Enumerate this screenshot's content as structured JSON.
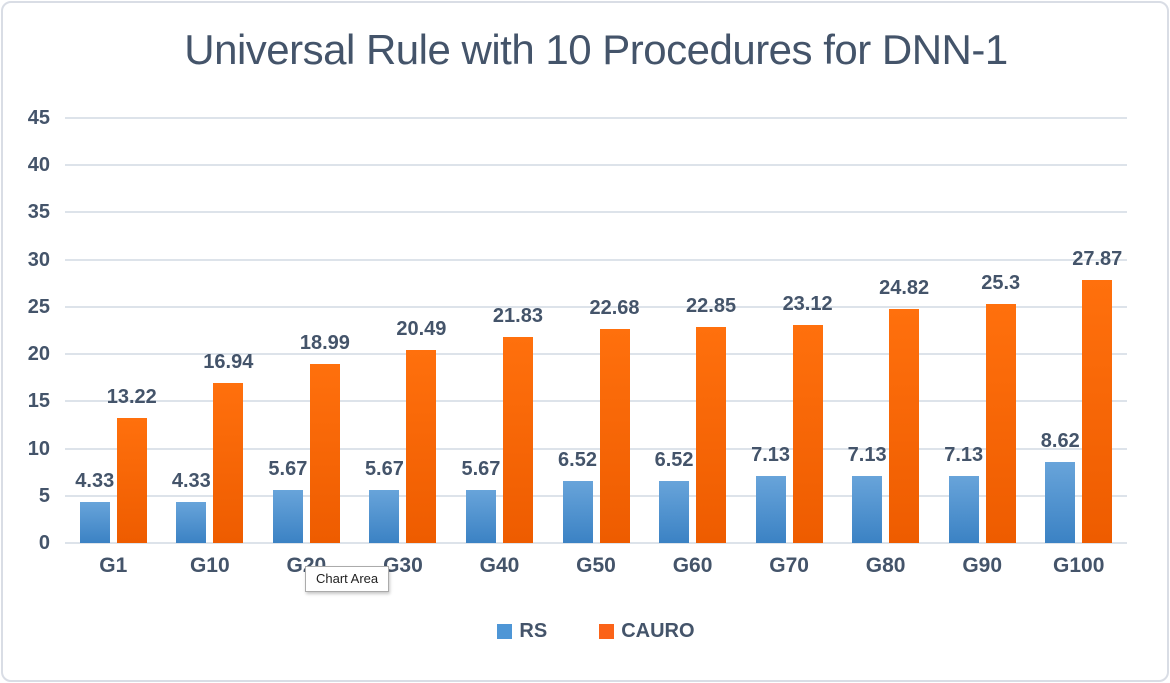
{
  "window": {
    "background": "#ffffff",
    "frame_border_color": "#d9dde5"
  },
  "tooltip": {
    "label": "Chart Area"
  },
  "chart_data": {
    "type": "bar",
    "title": "Universal Rule with 10 Procedures for DNN-1",
    "categories": [
      "G1",
      "G10",
      "G20",
      "G30",
      "G40",
      "G50",
      "G60",
      "G70",
      "G80",
      "G90",
      "G100"
    ],
    "series": [
      {
        "name": "RS",
        "values": [
          4.33,
          4.33,
          5.67,
          5.67,
          5.67,
          6.52,
          6.52,
          7.13,
          7.13,
          7.13,
          8.62
        ],
        "labels": [
          "4.33",
          "4.33",
          "5.67",
          "5.67",
          "5.67",
          "6.52",
          "6.52",
          "7.13",
          "7.13",
          "7.13",
          "8.62"
        ],
        "gradient_top": "#68a4da",
        "gradient_bottom": "#3b82c4",
        "legend_color": "#4e96d6"
      },
      {
        "name": "CAURO",
        "values": [
          13.22,
          16.94,
          18.99,
          20.49,
          21.83,
          22.68,
          22.85,
          23.12,
          24.82,
          25.3,
          27.87
        ],
        "labels": [
          "13.22",
          "16.94",
          "18.99",
          "20.49",
          "21.83",
          "22.68",
          "22.85",
          "23.12",
          "24.82",
          "25.3",
          "27.87"
        ],
        "gradient_top": "#ff700d",
        "gradient_bottom": "#ee5c00",
        "legend_color": "#fb6318"
      }
    ],
    "xlabel": "",
    "ylabel": "",
    "ylim": [
      0,
      45
    ],
    "yticks": [
      0,
      5,
      10,
      15,
      20,
      25,
      30,
      35,
      40,
      45
    ],
    "grid": true,
    "legend_position": "bottom",
    "text_color": "#44546A",
    "gridline_color": "#dde3ea"
  }
}
